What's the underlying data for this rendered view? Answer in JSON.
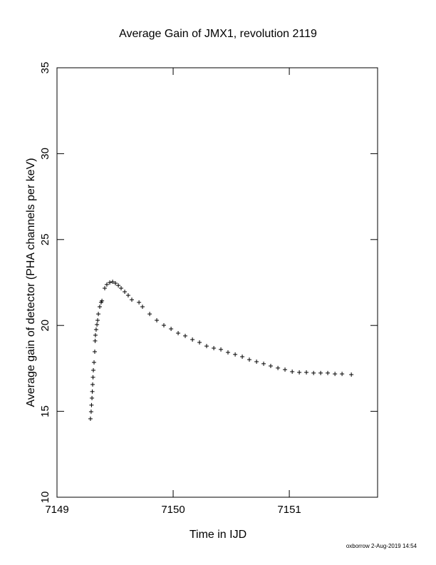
{
  "chart_data": {
    "type": "scatter",
    "title": "Average Gain of JMX1, revolution 2119",
    "x_label": "Time in IJD",
    "y_label": "Average gain of detector (PHA channels per keV)",
    "footer": "oxborrow  2-Aug-2019 14:54",
    "xlim": [
      7149,
      7151.76
    ],
    "ylim": [
      10,
      35
    ],
    "xticks": [
      7149,
      7150,
      7151
    ],
    "yticks": [
      10,
      15,
      20,
      25,
      30,
      35
    ],
    "grid": false,
    "series": [
      {
        "name": "JMX1",
        "color": "#000000",
        "marker": "+",
        "x": [
          7149.288,
          7149.294,
          7149.297,
          7149.301,
          7149.304,
          7149.307,
          7149.31,
          7149.313,
          7149.319,
          7149.325,
          7149.328,
          7149.331,
          7149.337,
          7149.344,
          7149.35,
          7149.356,
          7149.368,
          7149.38,
          7149.387,
          7149.411,
          7149.429,
          7149.454,
          7149.479,
          7149.503,
          7149.528,
          7149.552,
          7149.583,
          7149.613,
          7149.644,
          7149.706,
          7149.736,
          7149.798,
          7149.859,
          7149.92,
          7149.982,
          7150.043,
          7150.104,
          7150.166,
          7150.227,
          7150.288,
          7150.35,
          7150.411,
          7150.472,
          7150.534,
          7150.595,
          7150.656,
          7150.718,
          7150.779,
          7150.84,
          7150.902,
          7150.963,
          7151.025,
          7151.086,
          7151.147,
          7151.209,
          7151.27,
          7151.331,
          7151.393,
          7151.454,
          7151.534
        ],
        "values": [
          14.57,
          14.98,
          15.36,
          15.77,
          16.15,
          16.56,
          16.98,
          17.39,
          17.85,
          18.47,
          19.1,
          19.43,
          19.76,
          20.05,
          20.3,
          20.67,
          21.09,
          21.34,
          21.43,
          22.17,
          22.38,
          22.5,
          22.54,
          22.46,
          22.33,
          22.17,
          21.96,
          21.75,
          21.5,
          21.34,
          21.09,
          20.67,
          20.3,
          20.01,
          19.8,
          19.55,
          19.39,
          19.18,
          19.01,
          18.8,
          18.68,
          18.6,
          18.43,
          18.31,
          18.18,
          18.01,
          17.89,
          17.77,
          17.64,
          17.52,
          17.43,
          17.31,
          17.27,
          17.27,
          17.23,
          17.23,
          17.23,
          17.18,
          17.18,
          17.14
        ]
      }
    ]
  }
}
